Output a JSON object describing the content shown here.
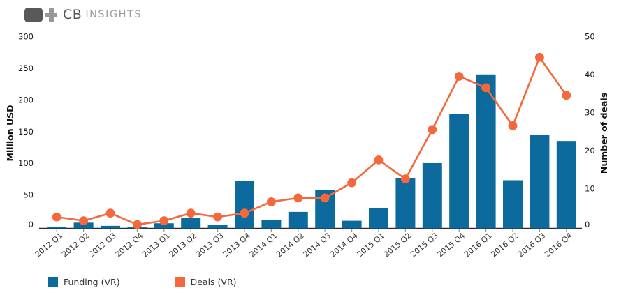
{
  "page": {
    "background": "#ffffff"
  },
  "logo": {
    "brand_primary": "CB",
    "brand_secondary": "INSIGHTS",
    "mark_dark_color": "#58595b",
    "mark_light_color": "#97989b"
  },
  "chart_data": {
    "type": "combo",
    "categories": [
      "2012 Q1",
      "2012 Q2",
      "2012 Q3",
      "2012 Q4",
      "2013 Q1",
      "2013 Q2",
      "2013 Q3",
      "2013 Q4",
      "2014 Q1",
      "2014 Q2",
      "2014 Q3",
      "2014 Q4",
      "2015 Q1",
      "2015 Q2",
      "2015 Q3",
      "2015 Q4",
      "2016 Q1",
      "2016 Q2",
      "2016 Q3",
      "2016 Q4"
    ],
    "series": [
      {
        "name": "Funding (VR)",
        "type": "bar",
        "axis": "left",
        "color": "#0d6a9c",
        "values": [
          2,
          9,
          4,
          2,
          8,
          17,
          5,
          75,
          13,
          26,
          61,
          12,
          32,
          79,
          103,
          181,
          243,
          76,
          148,
          138
        ]
      },
      {
        "name": "Deals (VR)",
        "type": "line",
        "axis": "right",
        "color": "#f4683c",
        "values": [
          3,
          2,
          4,
          1,
          2,
          4,
          3,
          4,
          7,
          8,
          8,
          12,
          18,
          13,
          26,
          40,
          37,
          27,
          45,
          35
        ]
      }
    ],
    "left_axis": {
      "title": "Million USD",
      "min": 0,
      "max": 300,
      "tick_step": 50,
      "ticks": [
        0,
        50,
        100,
        150,
        200,
        250,
        300
      ]
    },
    "right_axis": {
      "title": "Number of deals",
      "min": 0,
      "max": 50,
      "tick_step": 10,
      "ticks": [
        0,
        10,
        20,
        30,
        40,
        50
      ]
    },
    "grid": false,
    "legend_position": "bottom-left",
    "axis_line_color": "#2b2b2b",
    "tick_mark_color": "#999999",
    "tick_label_color": "#1a1a1a",
    "x_label_color": "#333333"
  },
  "legend": {
    "items": [
      {
        "label": "Funding (VR)",
        "color": "#0d6a9c"
      },
      {
        "label": "Deals (VR)",
        "color": "#f4683c"
      }
    ]
  }
}
